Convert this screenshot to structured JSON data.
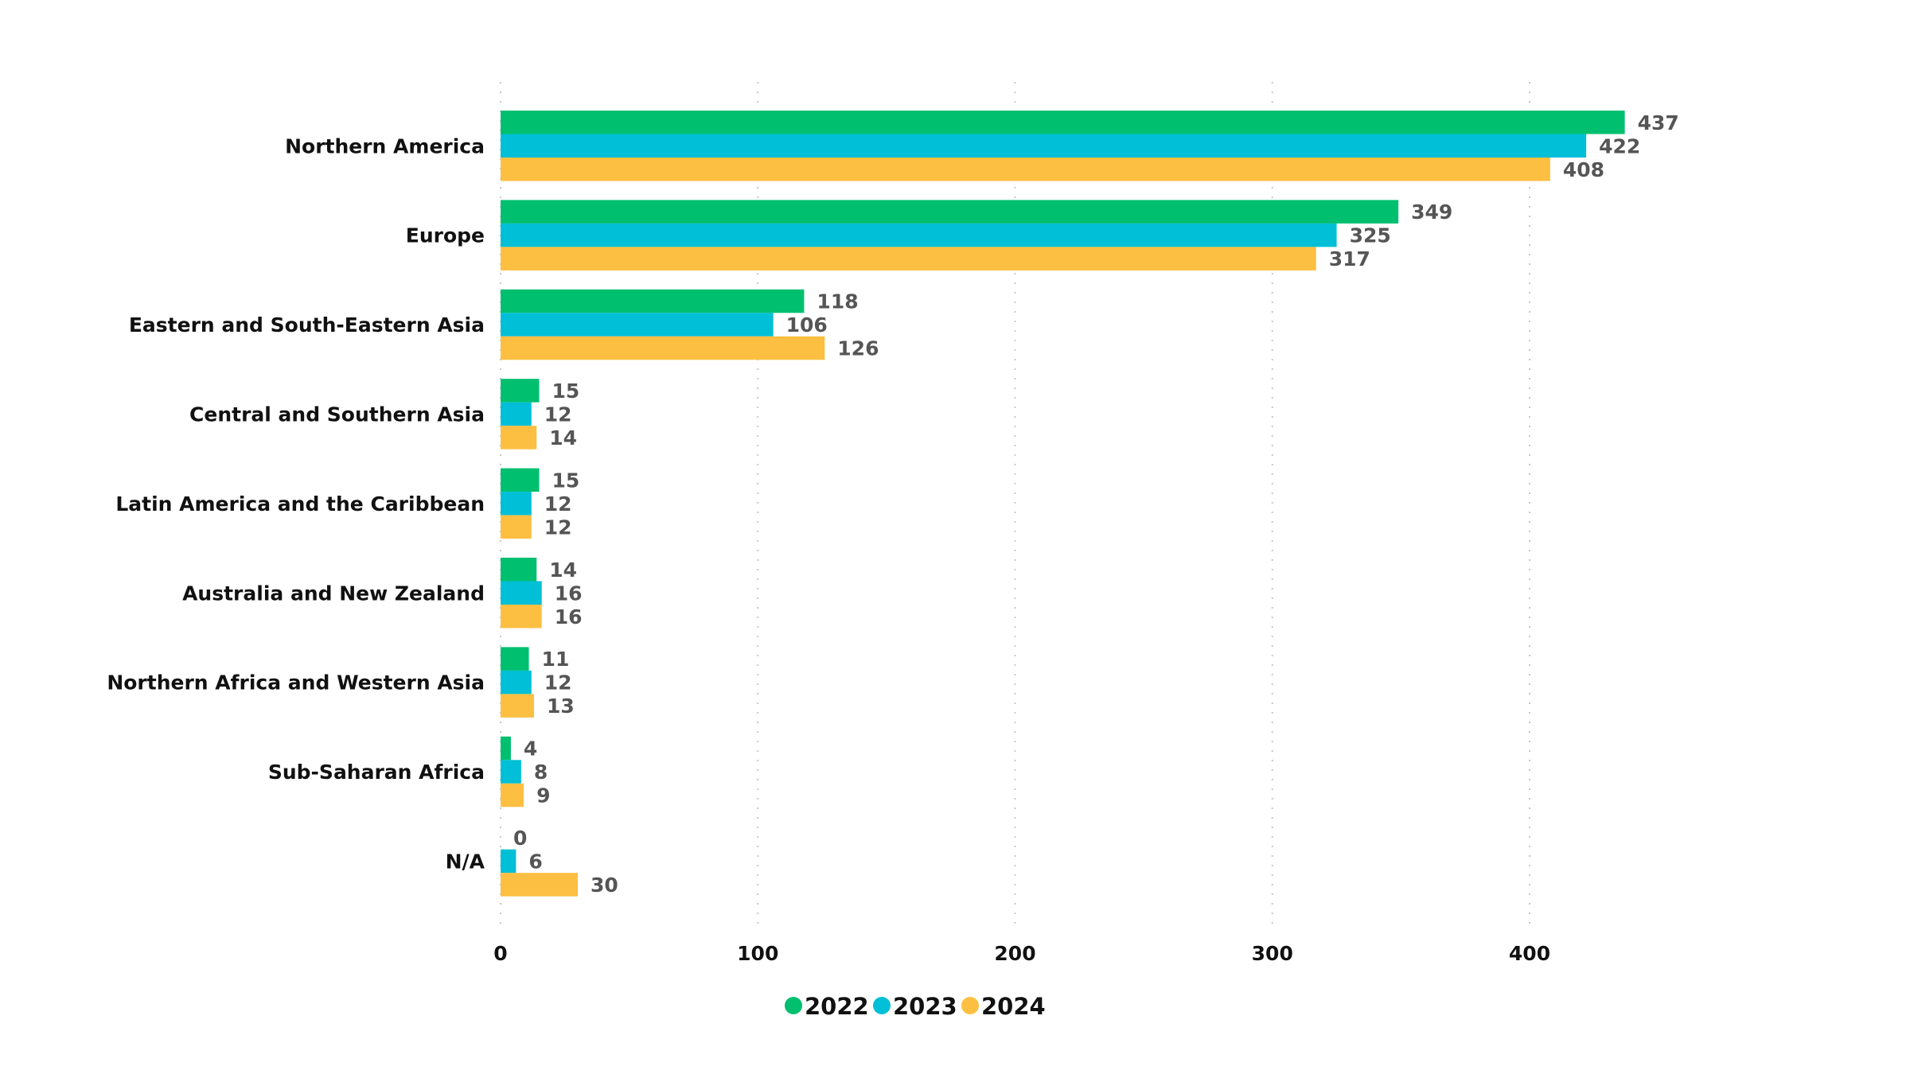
{
  "chart_data": {
    "type": "bar",
    "orientation": "horizontal",
    "title": "",
    "xlabel": "",
    "ylabel": "",
    "xlim": [
      0,
      400
    ],
    "grid": true,
    "legend_position": "bottom-center",
    "x_ticks": [
      0,
      100,
      200,
      300,
      400
    ],
    "categories": [
      "Northern America",
      "Europe",
      "Eastern and South-Eastern Asia",
      "Central and Southern Asia",
      "Latin America and the Caribbean",
      "Australia and New Zealand",
      "Northern Africa and Western Asia",
      "Sub-Saharan Africa",
      "N/A"
    ],
    "series": [
      {
        "name": "2022",
        "color": "#00bf6f",
        "values": [
          437,
          349,
          118,
          15,
          15,
          14,
          11,
          4,
          0
        ]
      },
      {
        "name": "2023",
        "color": "#00bfd6",
        "values": [
          422,
          325,
          106,
          12,
          12,
          16,
          12,
          8,
          6
        ]
      },
      {
        "name": "2024",
        "color": "#fcbf41",
        "values": [
          408,
          317,
          126,
          14,
          12,
          16,
          13,
          9,
          30
        ]
      }
    ]
  }
}
